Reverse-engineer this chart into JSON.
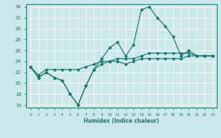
{
  "xlabel": "Humidex (Indice chaleur)",
  "xlim": [
    -0.5,
    23.5
  ],
  "ylim": [
    15.5,
    34.5
  ],
  "yticks": [
    16,
    18,
    20,
    22,
    24,
    26,
    28,
    30,
    32,
    34
  ],
  "xticks": [
    0,
    1,
    2,
    3,
    4,
    5,
    6,
    7,
    8,
    9,
    10,
    11,
    12,
    13,
    14,
    15,
    16,
    17,
    18,
    19,
    20,
    21,
    22,
    23
  ],
  "background_color": "#cce8eb",
  "grid_color": "#ffffff",
  "line_color": "#1a7a6e",
  "lines": [
    {
      "x": [
        0,
        1,
        2,
        3,
        4,
        5,
        6,
        7,
        8,
        9,
        10,
        11,
        12,
        13,
        14,
        15,
        16,
        17,
        18,
        19,
        20,
        21,
        22,
        23
      ],
      "y": [
        23,
        21,
        22,
        21,
        20.5,
        18,
        16,
        19.5,
        22.5,
        24.5,
        26.5,
        27.5,
        25,
        27,
        33.5,
        34,
        32,
        30.5,
        28.5,
        25,
        26,
        25,
        25,
        25
      ]
    },
    {
      "x": [
        0,
        1,
        2,
        3,
        4,
        5,
        6,
        7,
        8,
        9,
        10,
        11,
        12,
        13,
        14,
        15,
        16,
        17,
        18,
        19,
        20,
        21,
        22,
        23
      ],
      "y": [
        23,
        21,
        22,
        21,
        20.5,
        18,
        16,
        19.5,
        22.5,
        23.5,
        24,
        24,
        23.5,
        24,
        24.5,
        24.5,
        24.5,
        24.5,
        24.5,
        24.5,
        25,
        25,
        25,
        25
      ]
    },
    {
      "x": [
        0,
        1,
        2,
        3,
        4,
        5,
        6,
        7,
        8,
        9,
        10,
        11,
        12,
        13,
        14,
        15,
        16,
        17,
        18,
        19,
        20,
        21,
        22,
        23
      ],
      "y": [
        23,
        21.5,
        22.5,
        22.5,
        22.5,
        22.5,
        22.5,
        23,
        23.5,
        24,
        24,
        24.5,
        24.5,
        24.5,
        25,
        25.5,
        25.5,
        25.5,
        25.5,
        25.5,
        25.5,
        25,
        25,
        25
      ]
    }
  ]
}
